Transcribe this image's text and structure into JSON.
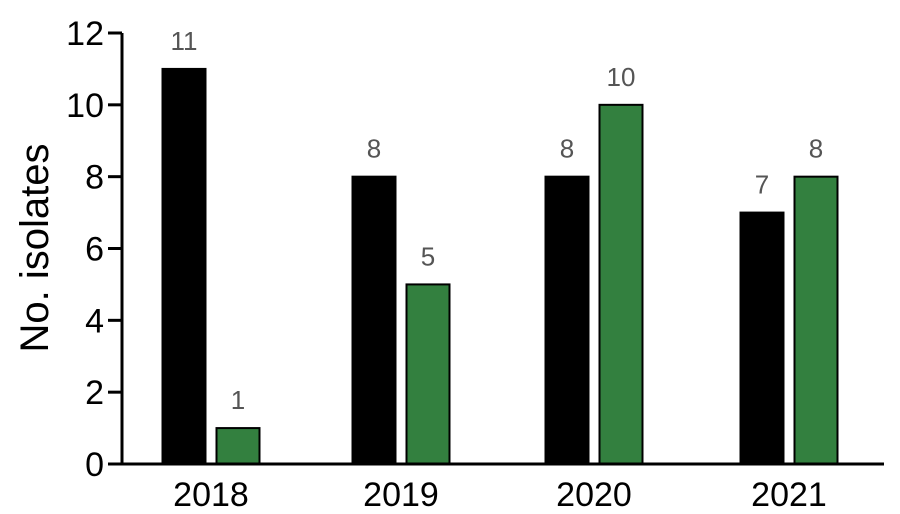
{
  "chart_data": {
    "type": "bar",
    "categories": [
      "2018",
      "2019",
      "2020",
      "2021"
    ],
    "series": [
      {
        "values": [
          11,
          8,
          8,
          7
        ],
        "color": "#000000"
      },
      {
        "values": [
          1,
          5,
          10,
          8
        ],
        "color": "#33803f"
      }
    ],
    "title": "",
    "xlabel": "",
    "ylabel": "No. isolates",
    "ylim": [
      0,
      12
    ],
    "yticks": [
      0,
      2,
      4,
      6,
      8,
      10,
      12
    ],
    "grid": false,
    "legend": "none",
    "data_labels": true
  }
}
